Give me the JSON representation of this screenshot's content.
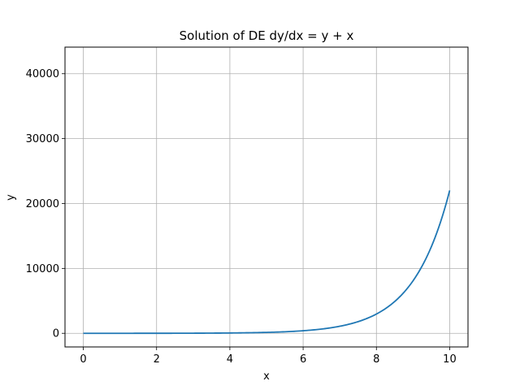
{
  "chart_data": {
    "type": "line",
    "title": "Solution of DE dy/dx = y + x",
    "xlabel": "x",
    "ylabel": "y",
    "xlim": [
      -0.5,
      10.5
    ],
    "ylim": [
      -2100,
      44100
    ],
    "xticks": [
      0,
      2,
      4,
      6,
      8,
      10
    ],
    "yticks": [
      0,
      10000,
      20000,
      30000,
      40000
    ],
    "grid": true,
    "series": [
      {
        "color": "#1f77b4",
        "x": [
          0,
          0.5,
          1,
          1.5,
          2,
          2.5,
          3,
          3.5,
          4,
          4.5,
          5,
          5.5,
          6,
          6.5,
          7,
          7.5,
          8,
          8.5,
          9,
          9.5,
          10
        ],
        "y": [
          0,
          0.15,
          0.72,
          1.98,
          4.39,
          8.68,
          17.1,
          29.6,
          50.6,
          85.5,
          142.4,
          235.2,
          396.4,
          656.1,
          1088.6,
          1799.5,
          2971,
          4905,
          8093,
          13350,
          22016
        ]
      }
    ]
  }
}
